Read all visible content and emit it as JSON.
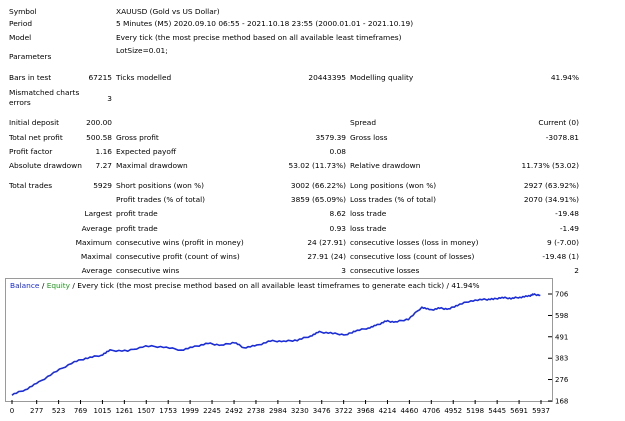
{
  "rows": {
    "symbol": {
      "label": "Symbol",
      "value": "XAUUSD (Gold vs US Dollar)"
    },
    "period": {
      "label": "Period",
      "value": "5 Minutes (M5) 2020.09.10 06:55 - 2021.10.18 23:55 (2000.01.01 - 2021.10.19)"
    },
    "model": {
      "label": "Model",
      "value": "Every tick (the most precise method based on all available least timeframes)"
    },
    "parameters": {
      "label": "Parameters",
      "value": "LotSize=0.01;"
    },
    "bars": {
      "label": "Bars in test",
      "value": "67215",
      "label2": "Ticks modelled",
      "value2": "20443395",
      "label3": "Modelling quality",
      "value3": "41.94%"
    },
    "mismatched": {
      "label": "Mismatched charts errors",
      "value": "3"
    },
    "deposit": {
      "label": "Initial deposit",
      "value": "200.00",
      "label3": "Spread",
      "value3": "Current (0)"
    },
    "netprofit": {
      "label": "Total net profit",
      "value": "500.58",
      "label2": "Gross profit",
      "value2": "3579.39",
      "label3": "Gross loss",
      "value3": "-3078.81"
    },
    "pfactor": {
      "label": "Profit factor",
      "value": "1.16",
      "label2": "Expected payoff",
      "value2": "0.08"
    },
    "absdd": {
      "label": "Absolute drawdown",
      "value": "7.27",
      "label2": "Maximal drawdown",
      "value2": "53.02 (11.73%)",
      "label3": "Relative drawdown",
      "value3": "11.73% (53.02)"
    },
    "trades": {
      "label": "Total trades",
      "value": "5929",
      "label2": "Short positions (won %)",
      "value2": "3002 (66.22%)",
      "label3": "Long positions (won %)",
      "value3": "2927 (63.92%)"
    },
    "profittrades": {
      "label2": "Profit trades (% of total)",
      "value2": "3859 (65.09%)",
      "label3": "Loss trades (% of total)",
      "value3": "2070 (34.91%)"
    },
    "largest": {
      "label": "Largest",
      "label2": "profit trade",
      "value2": "8.62",
      "label3": "loss trade",
      "value3": "-19.48"
    },
    "average": {
      "label": "Average",
      "label2": "profit trade",
      "value2": "0.93",
      "label3": "loss trade",
      "value3": "-1.49"
    },
    "maximum": {
      "label": "Maximum",
      "label2": "consecutive wins (profit in money)",
      "value2": "24 (27.91)",
      "label3": "consecutive losses (loss in money)",
      "value3": "9 (-7.00)"
    },
    "maximal": {
      "label": "Maximal",
      "label2": "consecutive profit (count of wins)",
      "value2": "27.91 (24)",
      "label3": "consecutive loss (count of losses)",
      "value3": "-19.48 (1)"
    },
    "average2": {
      "label": "Average",
      "label2": "consecutive wins",
      "value2": "3",
      "label3": "consecutive losses",
      "value3": "2"
    }
  },
  "chart_legend": {
    "balance": "Balance",
    "sep1": " / ",
    "equity": "Equity",
    "rest": " / Every tick (the most precise method based on all available least timeframes to generate each tick) / 41.94%"
  },
  "colors": {
    "balance": "#1a2dd8",
    "equity": "#1f9a1f",
    "frame": "#9a9a9a"
  },
  "chart_data": {
    "type": "line",
    "series": [
      {
        "name": "Balance",
        "x": [
          0,
          150,
          300,
          500,
          700,
          850,
          1000,
          1100,
          1300,
          1500,
          1700,
          1900,
          2050,
          2200,
          2350,
          2500,
          2600,
          2750,
          2900,
          3050,
          3200,
          3350,
          3450,
          3600,
          3750,
          3850,
          4000,
          4100,
          4200,
          4300,
          4450,
          4600,
          4700,
          4800,
          4900,
          5000,
          5150,
          5300,
          5400,
          5500,
          5600,
          5700,
          5800,
          5850,
          5929
        ],
        "values": [
          200,
          225,
          262,
          318,
          365,
          385,
          398,
          422,
          420,
          444,
          440,
          424,
          441,
          458,
          448,
          463,
          436,
          447,
          470,
          468,
          474,
          495,
          515,
          508,
          500,
          520,
          535,
          550,
          570,
          565,
          580,
          640,
          625,
          635,
          630,
          650,
          672,
          678,
          680,
          688,
          684,
          690,
          695,
          704,
          700
        ]
      }
    ],
    "x_ticks": [
      "0",
      "277",
      "523",
      "769",
      "1015",
      "1261",
      "1507",
      "1753",
      "1999",
      "2245",
      "2492",
      "2738",
      "2984",
      "3230",
      "3476",
      "3722",
      "3968",
      "4214",
      "4460",
      "4706",
      "4952",
      "5198",
      "5445",
      "5691",
      "5937"
    ],
    "y_ticks": [
      "706",
      "598",
      "491",
      "383",
      "276",
      "168"
    ],
    "xlim": [
      0,
      5937
    ],
    "ylim": [
      168,
      706
    ]
  }
}
